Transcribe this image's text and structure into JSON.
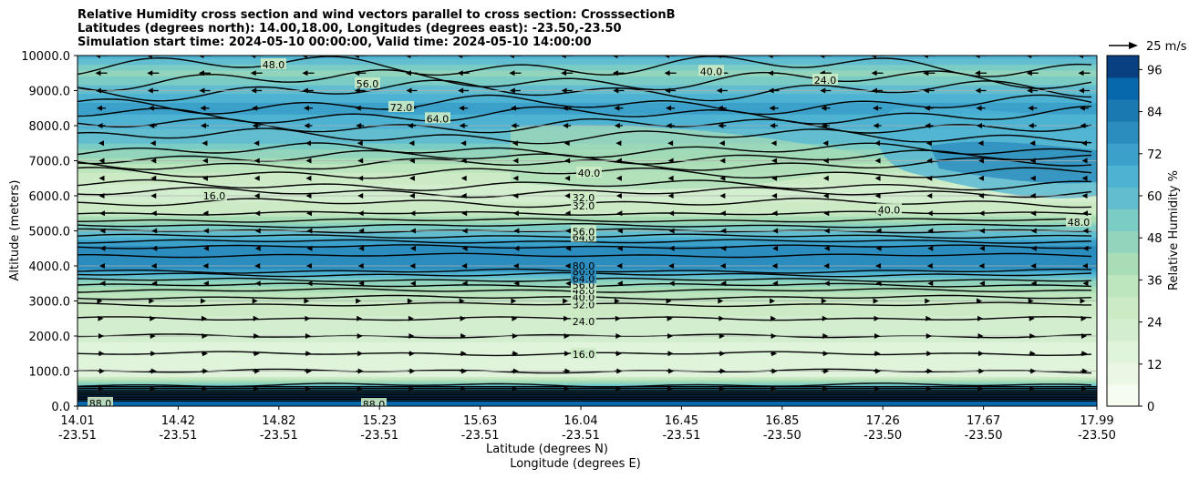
{
  "chart_data": {
    "type": "heatmap",
    "title": {
      "line1": "Relative Humidity cross section and wind vectors parallel to cross section: CrosssectionB",
      "line2": "Latitudes (degrees north): 14.00,18.00, Longitudes (degrees east): -23.50,-23.50",
      "line3": "Simulation start time: 2024-05-10 00:00:00, Valid time: 2024-05-10 14:00:00"
    },
    "ylabel": "Altitude (meters)",
    "xlabel_lat": "Latitude (degrees N)",
    "xlabel_lon": "Longitude (degrees E)",
    "colorbar_label": "Relative Humidity %",
    "ylim": [
      0,
      10000
    ],
    "y_ticks": [
      "0.0",
      "1000.0",
      "2000.0",
      "3000.0",
      "4000.0",
      "5000.0",
      "6000.0",
      "7000.0",
      "8000.0",
      "9000.0",
      "10000.0"
    ],
    "x_ticks": [
      {
        "lat": "14.01",
        "lon": "-23.51"
      },
      {
        "lat": "14.42",
        "lon": "-23.51"
      },
      {
        "lat": "14.82",
        "lon": "-23.51"
      },
      {
        "lat": "15.23",
        "lon": "-23.51"
      },
      {
        "lat": "15.63",
        "lon": "-23.51"
      },
      {
        "lat": "16.04",
        "lon": "-23.51"
      },
      {
        "lat": "16.45",
        "lon": "-23.51"
      },
      {
        "lat": "16.85",
        "lon": "-23.50"
      },
      {
        "lat": "17.26",
        "lon": "-23.50"
      },
      {
        "lat": "17.67",
        "lon": "-23.50"
      },
      {
        "lat": "17.99",
        "lon": "-23.50"
      }
    ],
    "colorbar_ticks": [
      "0",
      "12",
      "24",
      "36",
      "48",
      "60",
      "72",
      "84",
      "96"
    ],
    "colorbar_range": [
      0,
      100
    ],
    "colormap_levels": [
      "#f7fcf0",
      "#eaf7e4",
      "#e0f3db",
      "#d3eece",
      "#ccebc5",
      "#bde5be",
      "#a8ddb5",
      "#92d4bc",
      "#7bccc4",
      "#62bdcf",
      "#4eb3d3",
      "#3ba0ca",
      "#2b8cbe",
      "#1b79b2",
      "#0868ac",
      "#084081"
    ],
    "quiver_key": "25 m/s",
    "rh_profile": [
      {
        "alt": 0,
        "rh": 90
      },
      {
        "alt": 300,
        "rh": 95
      },
      {
        "alt": 600,
        "rh": 60
      },
      {
        "alt": 900,
        "rh": 14
      },
      {
        "alt": 1500,
        "rh": 16
      },
      {
        "alt": 2500,
        "rh": 24
      },
      {
        "alt": 3000,
        "rh": 30
      },
      {
        "alt": 3500,
        "rh": 45
      },
      {
        "alt": 4000,
        "rh": 80
      },
      {
        "alt": 4500,
        "rh": 80
      },
      {
        "alt": 5000,
        "rh": 56
      },
      {
        "alt": 5500,
        "rh": 32
      },
      {
        "alt": 6000,
        "rh": 20
      },
      {
        "alt": 6500,
        "rh": 28
      },
      {
        "alt": 7000,
        "rh": 40
      },
      {
        "alt": 7500,
        "rh": 56
      },
      {
        "alt": 8000,
        "rh": 64
      },
      {
        "alt": 8500,
        "rh": 72
      },
      {
        "alt": 9000,
        "rh": 60
      },
      {
        "alt": 9500,
        "rh": 48
      },
      {
        "alt": 10000,
        "rh": 64
      }
    ],
    "contour_altitudes": [
      600,
      1000,
      1500,
      2000,
      2500,
      2900,
      3100,
      3300,
      3450,
      3600,
      3750,
      3850,
      4300,
      4550,
      4700,
      4850,
      5000,
      5150,
      5300,
      5500,
      5800,
      6100,
      6300,
      6650,
      6900,
      7100,
      7300,
      7700,
      8000,
      8300,
      8600,
      9000,
      9300,
      9700
    ],
    "contour_labels": [
      {
        "text": "16.0",
        "alt": 1480
      },
      {
        "text": "24.0",
        "alt": 2420
      },
      {
        "text": "32.0",
        "alt": 2900
      },
      {
        "text": "40.0",
        "alt": 3100
      },
      {
        "text": "48.0",
        "alt": 3300
      },
      {
        "text": "56.0",
        "alt": 3450
      },
      {
        "text": "64.0",
        "alt": 3630
      },
      {
        "text": "80.0",
        "alt": 3850
      },
      {
        "text": "80.0",
        "alt": 4000
      },
      {
        "text": "64.0",
        "alt": 4820
      },
      {
        "text": "56.0",
        "alt": 4980
      },
      {
        "text": "32.0",
        "alt": 5720
      },
      {
        "text": "32.0",
        "alt": 5950
      },
      {
        "text": "40.0",
        "alt": 6650
      },
      {
        "text": "64.0",
        "alt": 8200
      },
      {
        "text": "72.0",
        "alt": 8520
      },
      {
        "text": "56.0",
        "alt": 9200
      },
      {
        "text": "48.0",
        "alt": 9740
      },
      {
        "text": "40.0",
        "alt": 9550
      },
      {
        "text": "24.0",
        "alt": 9300
      },
      {
        "text": "16.0",
        "alt": 6000
      },
      {
        "text": "88.0",
        "alt": 50
      },
      {
        "text": "88.0",
        "alt": 80
      },
      {
        "text": "40.0",
        "alt": 5600
      },
      {
        "text": "48.0",
        "alt": 5250
      }
    ],
    "wind_levels": [
      {
        "alt": 10000,
        "dir": -1,
        "len": 14
      },
      {
        "alt": 9500,
        "dir": -1,
        "len": 13
      },
      {
        "alt": 9000,
        "dir": -1,
        "len": 12
      },
      {
        "alt": 8500,
        "dir": -1,
        "len": 10
      },
      {
        "alt": 8000,
        "dir": -1,
        "len": 9
      },
      {
        "alt": 7500,
        "dir": -1,
        "len": 6
      },
      {
        "alt": 7000,
        "dir": -1,
        "len": 5
      },
      {
        "alt": 6500,
        "dir": -1,
        "len": 5
      },
      {
        "alt": 6000,
        "dir": -1,
        "len": 5
      },
      {
        "alt": 5500,
        "dir": -1,
        "len": 4
      },
      {
        "alt": 5000,
        "dir": -1,
        "len": 3
      },
      {
        "alt": 4500,
        "dir": -1,
        "len": 3
      },
      {
        "alt": 4000,
        "dir": -1,
        "len": 4
      },
      {
        "alt": 3500,
        "dir": -1,
        "len": 3
      },
      {
        "alt": 3000,
        "dir": 1,
        "len": 3
      },
      {
        "alt": 2500,
        "dir": 1,
        "len": 5
      },
      {
        "alt": 2000,
        "dir": 1,
        "len": 6
      },
      {
        "alt": 1500,
        "dir": 1,
        "len": 7
      },
      {
        "alt": 1000,
        "dir": 1,
        "len": 8
      },
      {
        "alt": 500,
        "dir": 1,
        "len": 6
      }
    ]
  }
}
